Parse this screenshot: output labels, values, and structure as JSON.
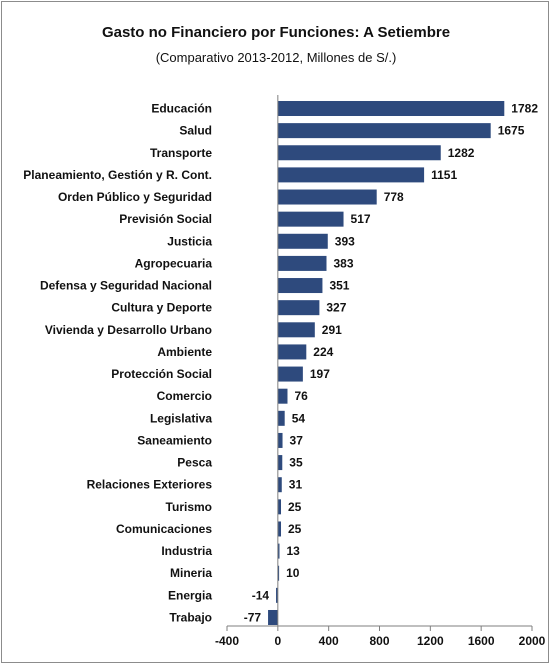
{
  "chart_data": {
    "type": "bar",
    "orientation": "horizontal",
    "title": "Gasto no Financiero por Funciones: A Setiembre",
    "subtitle": "(Comparativo 2013-2012, Millones de S/.)",
    "categories": [
      "Educación",
      "Salud",
      "Transporte",
      "Planeamiento, Gestión y R. Cont.",
      "Orden Público y Seguridad",
      "Previsión Social",
      "Justicia",
      "Agropecuaria",
      "Defensa y Seguridad Nacional",
      "Cultura y Deporte",
      "Vivienda y Desarrollo Urbano",
      "Ambiente",
      "Protección Social",
      "Comercio",
      "Legislativa",
      "Saneamiento",
      "Pesca",
      "Relaciones Exteriores",
      "Turismo",
      "Comunicaciones",
      "Industria",
      "Mineria",
      "Energia",
      "Trabajo"
    ],
    "values": [
      1782,
      1675,
      1282,
      1151,
      778,
      517,
      393,
      383,
      351,
      327,
      291,
      224,
      197,
      76,
      54,
      37,
      35,
      31,
      25,
      25,
      13,
      10,
      -14,
      -77
    ],
    "value_labels": [
      "1782",
      "1675",
      "1282",
      "1151",
      "778",
      "517",
      "393",
      "383",
      "351",
      "327",
      "291",
      "224",
      "197",
      "76",
      "54",
      "37",
      "35",
      "31",
      "25",
      "25",
      "13",
      "10",
      "-14",
      "-77"
    ],
    "xlim": [
      -400,
      2000
    ],
    "xticks": [
      -400,
      0,
      400,
      800,
      1200,
      1600,
      2000
    ],
    "xtick_labels": [
      "-400",
      "0",
      "400",
      "800",
      "1200",
      "1600",
      "2000"
    ],
    "bar_color": "#2e4a7d",
    "grid": false,
    "legend": "none"
  }
}
